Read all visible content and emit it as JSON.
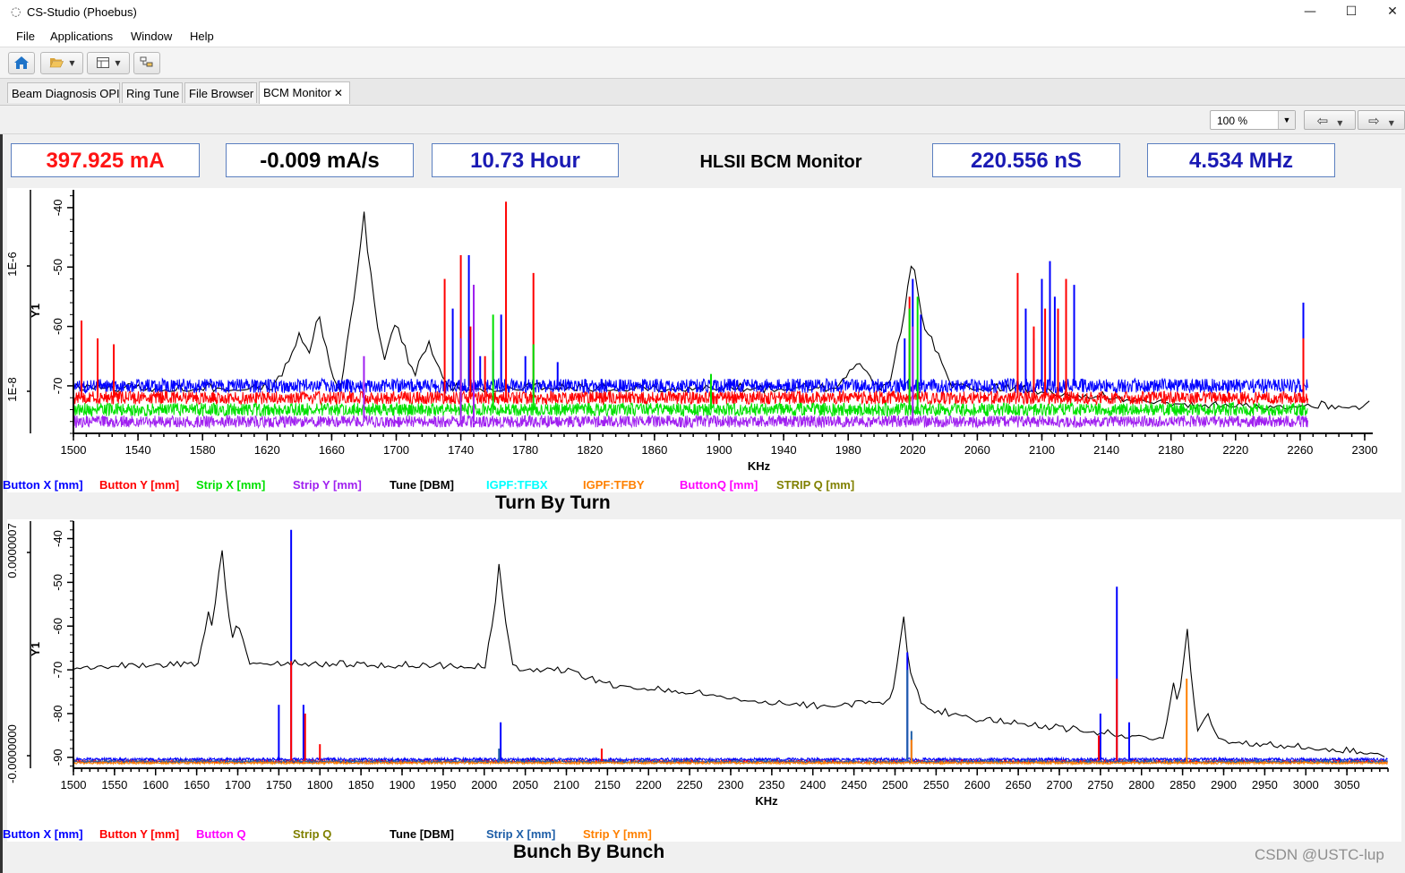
{
  "window": {
    "app_icon": "cs-studio-icon",
    "title": "CS-Studio (Phoebus)",
    "minimize": "—",
    "maximize": "☐",
    "close": "✕"
  },
  "menu": [
    "File",
    "Applications",
    "Window",
    "Help"
  ],
  "toolbar": {
    "home_icon": "home-icon",
    "open_icon": "folder-open-icon",
    "layout_icon": "layout-icon",
    "tree_icon": "tree-icon"
  },
  "tabs": [
    {
      "label": "Beam Diagnosis OPI"
    },
    {
      "label": "Ring Tune"
    },
    {
      "label": "File Browser"
    },
    {
      "label": "BCM Monitor",
      "active": true,
      "close": "✕"
    }
  ],
  "zoom": {
    "value": "100 %"
  },
  "metrics": {
    "current": "397.925 mA",
    "rate": "-0.009 mA/s",
    "lifetime": "10.73 Hour",
    "title": "HLSII BCM Monitor",
    "period": "220.556 nS",
    "frequency": "4.534 MHz"
  },
  "colors": {
    "current": "#ff1414",
    "rate": "#000000",
    "lifetime": "#1a1ab4",
    "period": "#1a1ab4",
    "frequency": "#1a1ab4",
    "button_x": "#0000ff",
    "button_y": "#ff0000",
    "strip_x_ttb": "#00e000",
    "strip_y_ttb": "#a020f0",
    "tune": "#000000",
    "igpf_tfbx": "#00ffff",
    "igpf_tfby": "#ff8000",
    "button_q": "#ff00ff",
    "strip_q": "#808000",
    "strip_x_bbb": "#1f5fa8",
    "strip_y_bbb": "#ff8000"
  },
  "chart_data": [
    {
      "type": "line",
      "title": "Turn By Turn",
      "xlabel": "KHz",
      "ylabel": "Y1",
      "xlim": [
        1500,
        2305
      ],
      "ylim": [
        -78,
        -37
      ],
      "x_ticks": [
        1500,
        1540,
        1580,
        1620,
        1660,
        1700,
        1740,
        1780,
        1820,
        1860,
        1900,
        1940,
        1980,
        2020,
        2060,
        2100,
        2140,
        2180,
        2220,
        2260,
        2300
      ],
      "y_ticks": [
        -70,
        -60,
        -50,
        -40
      ],
      "secondary_axis_labels": [
        "1E-6",
        "1E-8"
      ],
      "legend": [
        {
          "name": "Button X [mm]",
          "color": "#0000ff"
        },
        {
          "name": "Button Y [mm]",
          "color": "#ff0000"
        },
        {
          "name": "Strip X [mm]",
          "color": "#00e000"
        },
        {
          "name": "Strip Y [mm]",
          "color": "#a020f0"
        },
        {
          "name": "Tune [DBM]",
          "color": "#000000"
        },
        {
          "name": "IGPF:TFBX",
          "color": "#00ffff"
        },
        {
          "name": "IGPF:TFBY",
          "color": "#ff8000"
        },
        {
          "name": "ButtonQ [mm]",
          "color": "#ff00ff"
        },
        {
          "name": "STRIP Q [mm]",
          "color": "#808000"
        }
      ],
      "series": [
        {
          "name": "Tune [DBM]",
          "color": "#000000",
          "base": -71,
          "noise": 1.5,
          "x_end": 2305,
          "peaks": [
            [
              1640,
              -61,
              6
            ],
            [
              1652,
              -57,
              4
            ],
            [
              1680,
              -40,
              5
            ],
            [
              1700,
              -58,
              5
            ],
            [
              1720,
              -62,
              5
            ],
            [
              2020,
              -47,
              5
            ],
            [
              2030,
              -60,
              5
            ],
            [
              1985,
              -66,
              6
            ]
          ],
          "tail_from": 2080,
          "tail_to": -74
        },
        {
          "name": "Button X [mm]",
          "color": "#0000ff",
          "base": -70,
          "noise": 1.2,
          "x_end": 2265,
          "spikes": [
            [
              1735,
              -57
            ],
            [
              1745,
              -48
            ],
            [
              1748,
              -56
            ],
            [
              1752,
              -65
            ],
            [
              1760,
              -64
            ],
            [
              1765,
              -58
            ],
            [
              1780,
              -65
            ],
            [
              1800,
              -66
            ],
            [
              2015,
              -62
            ],
            [
              2020,
              -52
            ],
            [
              2025,
              -58
            ],
            [
              2090,
              -57
            ],
            [
              2095,
              -62
            ],
            [
              2100,
              -52
            ],
            [
              2105,
              -49
            ],
            [
              2108,
              -55
            ],
            [
              2120,
              -53
            ],
            [
              2262,
              -56
            ]
          ]
        },
        {
          "name": "Button Y [mm]",
          "color": "#ff0000",
          "base": -72,
          "noise": 1.1,
          "x_end": 2265,
          "spikes": [
            [
              1505,
              -59
            ],
            [
              1515,
              -62
            ],
            [
              1525,
              -63
            ],
            [
              1730,
              -52
            ],
            [
              1740,
              -48
            ],
            [
              1746,
              -60
            ],
            [
              1755,
              -65
            ],
            [
              1768,
              -39
            ],
            [
              1785,
              -51
            ],
            [
              2018,
              -55
            ],
            [
              2085,
              -51
            ],
            [
              2095,
              -60
            ],
            [
              2102,
              -57
            ],
            [
              2110,
              -57
            ],
            [
              2115,
              -52
            ],
            [
              2262,
              -62
            ]
          ]
        },
        {
          "name": "Strip X [mm]",
          "color": "#00e000",
          "base": -74,
          "noise": 1.1,
          "x_end": 2265,
          "spikes": [
            [
              1740,
              -62
            ],
            [
              1748,
              -53
            ],
            [
              1760,
              -58
            ],
            [
              1785,
              -63
            ],
            [
              2018,
              -57
            ],
            [
              2023,
              -55
            ],
            [
              1895,
              -68
            ]
          ]
        },
        {
          "name": "Strip Y [mm]",
          "color": "#a020f0",
          "base": -76,
          "noise": 1.0,
          "x_end": 2265,
          "spikes": [
            [
              1680,
              -65
            ],
            [
              1740,
              -62
            ],
            [
              1748,
              -53
            ],
            [
              2020,
              -60
            ]
          ]
        }
      ]
    },
    {
      "type": "line",
      "title": "Bunch By Bunch",
      "xlabel": "KHz",
      "ylabel": "Y1",
      "xlim": [
        1500,
        3100
      ],
      "ylim": [
        -92.5,
        -36
      ],
      "x_ticks": [
        1500,
        1550,
        1600,
        1650,
        1700,
        1750,
        1800,
        1850,
        1900,
        1950,
        2000,
        2050,
        2100,
        2150,
        2200,
        2250,
        2300,
        2350,
        2400,
        2450,
        2500,
        2550,
        2600,
        2650,
        2700,
        2750,
        2800,
        2850,
        2900,
        2950,
        3000,
        3050
      ],
      "y_ticks": [
        -90,
        -80,
        -70,
        -60,
        -50,
        -40
      ],
      "secondary_axis_labels": [
        "0.0000007",
        "-0.0000000"
      ],
      "legend": [
        {
          "name": "Button X [mm]",
          "color": "#0000ff"
        },
        {
          "name": "Button Y [mm]",
          "color": "#ff0000"
        },
        {
          "name": "Button Q",
          "color": "#ff00ff"
        },
        {
          "name": "Strip Q",
          "color": "#808000"
        },
        {
          "name": "Tune [DBM]",
          "color": "#000000"
        },
        {
          "name": "Strip X [mm]",
          "color": "#1f5fa8"
        },
        {
          "name": "Strip Y [mm]",
          "color": "#ff8000"
        }
      ],
      "series": [
        {
          "name": "Tune [DBM]",
          "color": "#000000",
          "noise": 1.6,
          "x_end": 3100,
          "base_curve": [
            [
              1500,
              -70
            ],
            [
              1700,
              -69
            ],
            [
              2000,
              -70
            ],
            [
              2100,
              -71
            ],
            [
              2150,
              -74
            ],
            [
              2250,
              -76
            ],
            [
              2400,
              -79
            ],
            [
              2500,
              -78
            ],
            [
              2600,
              -82
            ],
            [
              2700,
              -84
            ],
            [
              2800,
              -86
            ],
            [
              2900,
              -87
            ],
            [
              3100,
              -90
            ]
          ],
          "peaks": [
            [
              1680,
              -40,
              6
            ],
            [
              1665,
              -55,
              5
            ],
            [
              1700,
              -58,
              5
            ],
            [
              2018,
              -46,
              6
            ],
            [
              2510,
              -56,
              5
            ],
            [
              2520,
              -70,
              5
            ],
            [
              2855,
              -58,
              5
            ],
            [
              2840,
              -72,
              5
            ],
            [
              2880,
              -80,
              6
            ]
          ]
        },
        {
          "name": "Button X [mm]",
          "color": "#0000ff",
          "base": -90.5,
          "noise": 0.35,
          "x_end": 3100,
          "spikes": [
            [
              1750,
              -78
            ],
            [
              1765,
              -38
            ],
            [
              1780,
              -78
            ],
            [
              2020,
              -82
            ],
            [
              2515,
              -66
            ],
            [
              2750,
              -80
            ],
            [
              2770,
              -51
            ],
            [
              2785,
              -82
            ]
          ]
        },
        {
          "name": "Button Y [mm]",
          "color": "#ff0000",
          "base": -91,
          "noise": 0.3,
          "x_end": 3100,
          "spikes": [
            [
              1765,
              -68
            ],
            [
              1782,
              -80
            ],
            [
              1800,
              -87
            ],
            [
              2143,
              -88
            ],
            [
              2748,
              -85
            ],
            [
              2770,
              -72
            ]
          ]
        },
        {
          "name": "Strip X [mm]",
          "color": "#1f5fa8",
          "base": -91,
          "noise": 0.3,
          "x_end": 3100,
          "spikes": [
            [
              2018,
              -88
            ],
            [
              2515,
              -70
            ],
            [
              2520,
              -84
            ]
          ]
        },
        {
          "name": "Strip Y [mm]",
          "color": "#ff8000",
          "base": -91.3,
          "noise": 0.25,
          "x_end": 3100,
          "spikes": [
            [
              2855,
              -72
            ],
            [
              2520,
              -86
            ]
          ]
        }
      ]
    }
  ],
  "watermark": "CSDN @USTC-lup"
}
